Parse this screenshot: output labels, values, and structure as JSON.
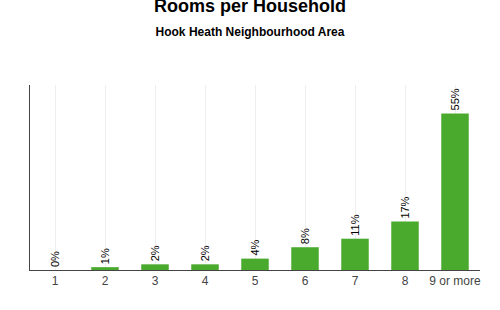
{
  "chart_data": {
    "type": "bar",
    "title": "Rooms per Household",
    "subtitle": "Hook Heath Neighbourhood Area",
    "categories": [
      "1",
      "2",
      "3",
      "4",
      "5",
      "6",
      "7",
      "8",
      "9 or more"
    ],
    "values": [
      0,
      1,
      2,
      2,
      4,
      8,
      11,
      17,
      55
    ],
    "value_labels": [
      "0%",
      "1%",
      "2%",
      "2%",
      "4%",
      "8%",
      "11%",
      "17%",
      "55%"
    ],
    "data_labels": true,
    "color": "#4aaa2e",
    "ylim": [
      0,
      65
    ],
    "tick_labels": "x",
    "grid": true
  }
}
